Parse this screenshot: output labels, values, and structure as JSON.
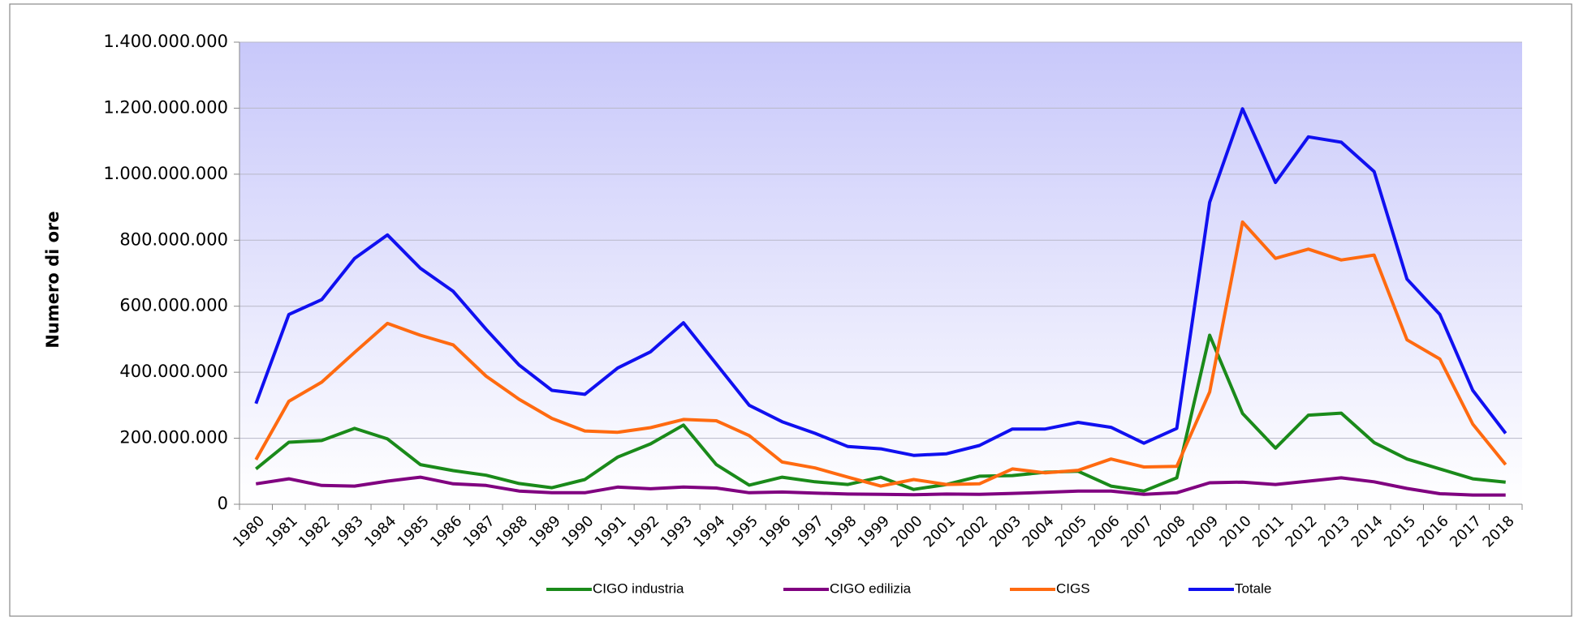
{
  "chart_data": {
    "type": "line",
    "y_label": "Numero di ore",
    "categories": [
      "1980",
      "1981",
      "1982",
      "1983",
      "1984",
      "1985",
      "1986",
      "1987",
      "1988",
      "1989",
      "1990",
      "1991",
      "1992",
      "1993",
      "1994",
      "1995",
      "1996",
      "1997",
      "1998",
      "1999",
      "2000",
      "2001",
      "2002",
      "2003",
      "2004",
      "2005",
      "2006",
      "2007",
      "2008",
      "2009",
      "2010",
      "2011",
      "2012",
      "2013",
      "2014",
      "2015",
      "2016",
      "2017",
      "2018"
    ],
    "series": [
      {
        "name": "CIGO industria",
        "color": "#1a8a1a",
        "values": [
          107000000,
          188000000,
          193000000,
          230000000,
          198000000,
          120000000,
          102000000,
          88000000,
          63000000,
          50000000,
          75000000,
          143000000,
          183000000,
          240000000,
          120000000,
          58000000,
          82000000,
          68000000,
          60000000,
          82000000,
          45000000,
          60000000,
          85000000,
          87000000,
          97000000,
          100000000,
          55000000,
          40000000,
          80000000,
          512000000,
          275000000,
          170000000,
          270000000,
          276000000,
          187000000,
          137000000,
          107000000,
          77000000,
          67000000
        ]
      },
      {
        "name": "CIGO edilizia",
        "color": "#800080",
        "values": [
          62000000,
          77000000,
          57000000,
          55000000,
          70000000,
          82000000,
          62000000,
          57000000,
          40000000,
          35000000,
          35000000,
          52000000,
          47000000,
          52000000,
          49000000,
          35000000,
          37000000,
          34000000,
          31000000,
          30000000,
          29000000,
          31000000,
          30000000,
          33000000,
          36000000,
          40000000,
          40000000,
          30000000,
          35000000,
          65000000,
          67000000,
          60000000,
          70000000,
          80000000,
          68000000,
          48000000,
          32000000,
          28000000,
          28000000
        ]
      },
      {
        "name": "CIGS",
        "color": "#ff6a10",
        "values": [
          135000000,
          312000000,
          370000000,
          460000000,
          548000000,
          512000000,
          483000000,
          388000000,
          318000000,
          260000000,
          222000000,
          218000000,
          232000000,
          257000000,
          253000000,
          208000000,
          128000000,
          110000000,
          82000000,
          55000000,
          75000000,
          60000000,
          62000000,
          107000000,
          95000000,
          103000000,
          137000000,
          113000000,
          115000000,
          340000000,
          855000000,
          745000000,
          773000000,
          740000000,
          755000000,
          498000000,
          440000000,
          243000000,
          120000000
        ]
      },
      {
        "name": "Totale",
        "color": "#1010f0",
        "values": [
          305000000,
          575000000,
          620000000,
          745000000,
          816000000,
          715000000,
          645000000,
          530000000,
          422000000,
          345000000,
          333000000,
          413000000,
          462000000,
          550000000,
          425000000,
          300000000,
          250000000,
          215000000,
          175000000,
          168000000,
          148000000,
          153000000,
          178000000,
          228000000,
          228000000,
          248000000,
          233000000,
          185000000,
          230000000,
          915000000,
          1198000000,
          975000000,
          1113000000,
          1097000000,
          1008000000,
          682000000,
          575000000,
          345000000,
          215000000
        ]
      }
    ],
    "ylim": [
      0,
      1400000000
    ],
    "yticks": [
      0,
      {
        "value": 200000000,
        "label": "200.000.000"
      },
      {
        "value": 400000000,
        "label": "400.000.000"
      },
      {
        "value": 600000000,
        "label": "600.000.000"
      },
      {
        "value": 800000000,
        "label": "800.000.000"
      },
      {
        "value": 1000000000,
        "label": "1.000.000.000"
      },
      {
        "value": 1200000000,
        "label": "1.200.000.000"
      },
      {
        "value": 1400000000,
        "label": "1.400.000.000"
      }
    ],
    "grid": true,
    "legend": "bottom"
  }
}
